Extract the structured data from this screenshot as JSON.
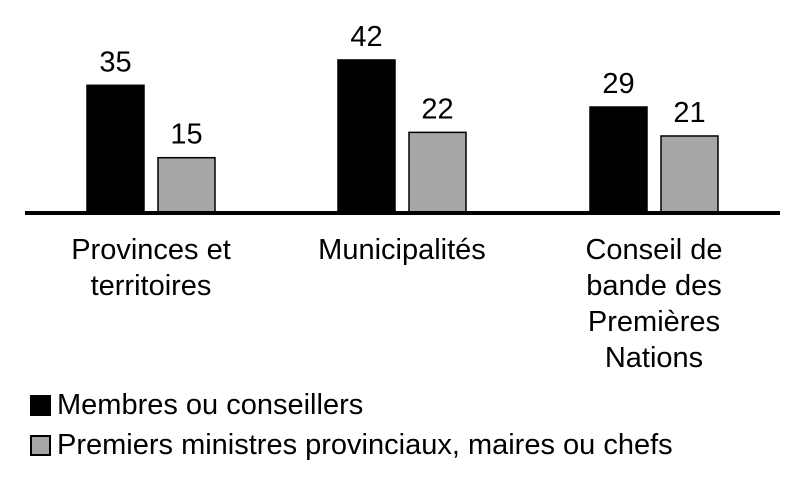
{
  "chart_data": {
    "type": "bar",
    "categories": [
      "Provinces et territoires",
      "Municipalités",
      "Conseil de bande des Premières Nations"
    ],
    "category_lines": [
      [
        "Provinces et",
        "territoires"
      ],
      [
        "Municipalités"
      ],
      [
        "Conseil de",
        "bande des",
        "Premières",
        "Nations"
      ]
    ],
    "series": [
      {
        "name": "Membres ou conseillers",
        "values": [
          35,
          42,
          29
        ],
        "color": "#000000"
      },
      {
        "name": "Premiers ministres provinciaux, maires ou chefs",
        "values": [
          15,
          22,
          21
        ],
        "color": "#a6a6a6"
      }
    ],
    "ylim": [
      0,
      45
    ],
    "grid": false,
    "legend_position": "bottom-left",
    "data_labels": true
  }
}
